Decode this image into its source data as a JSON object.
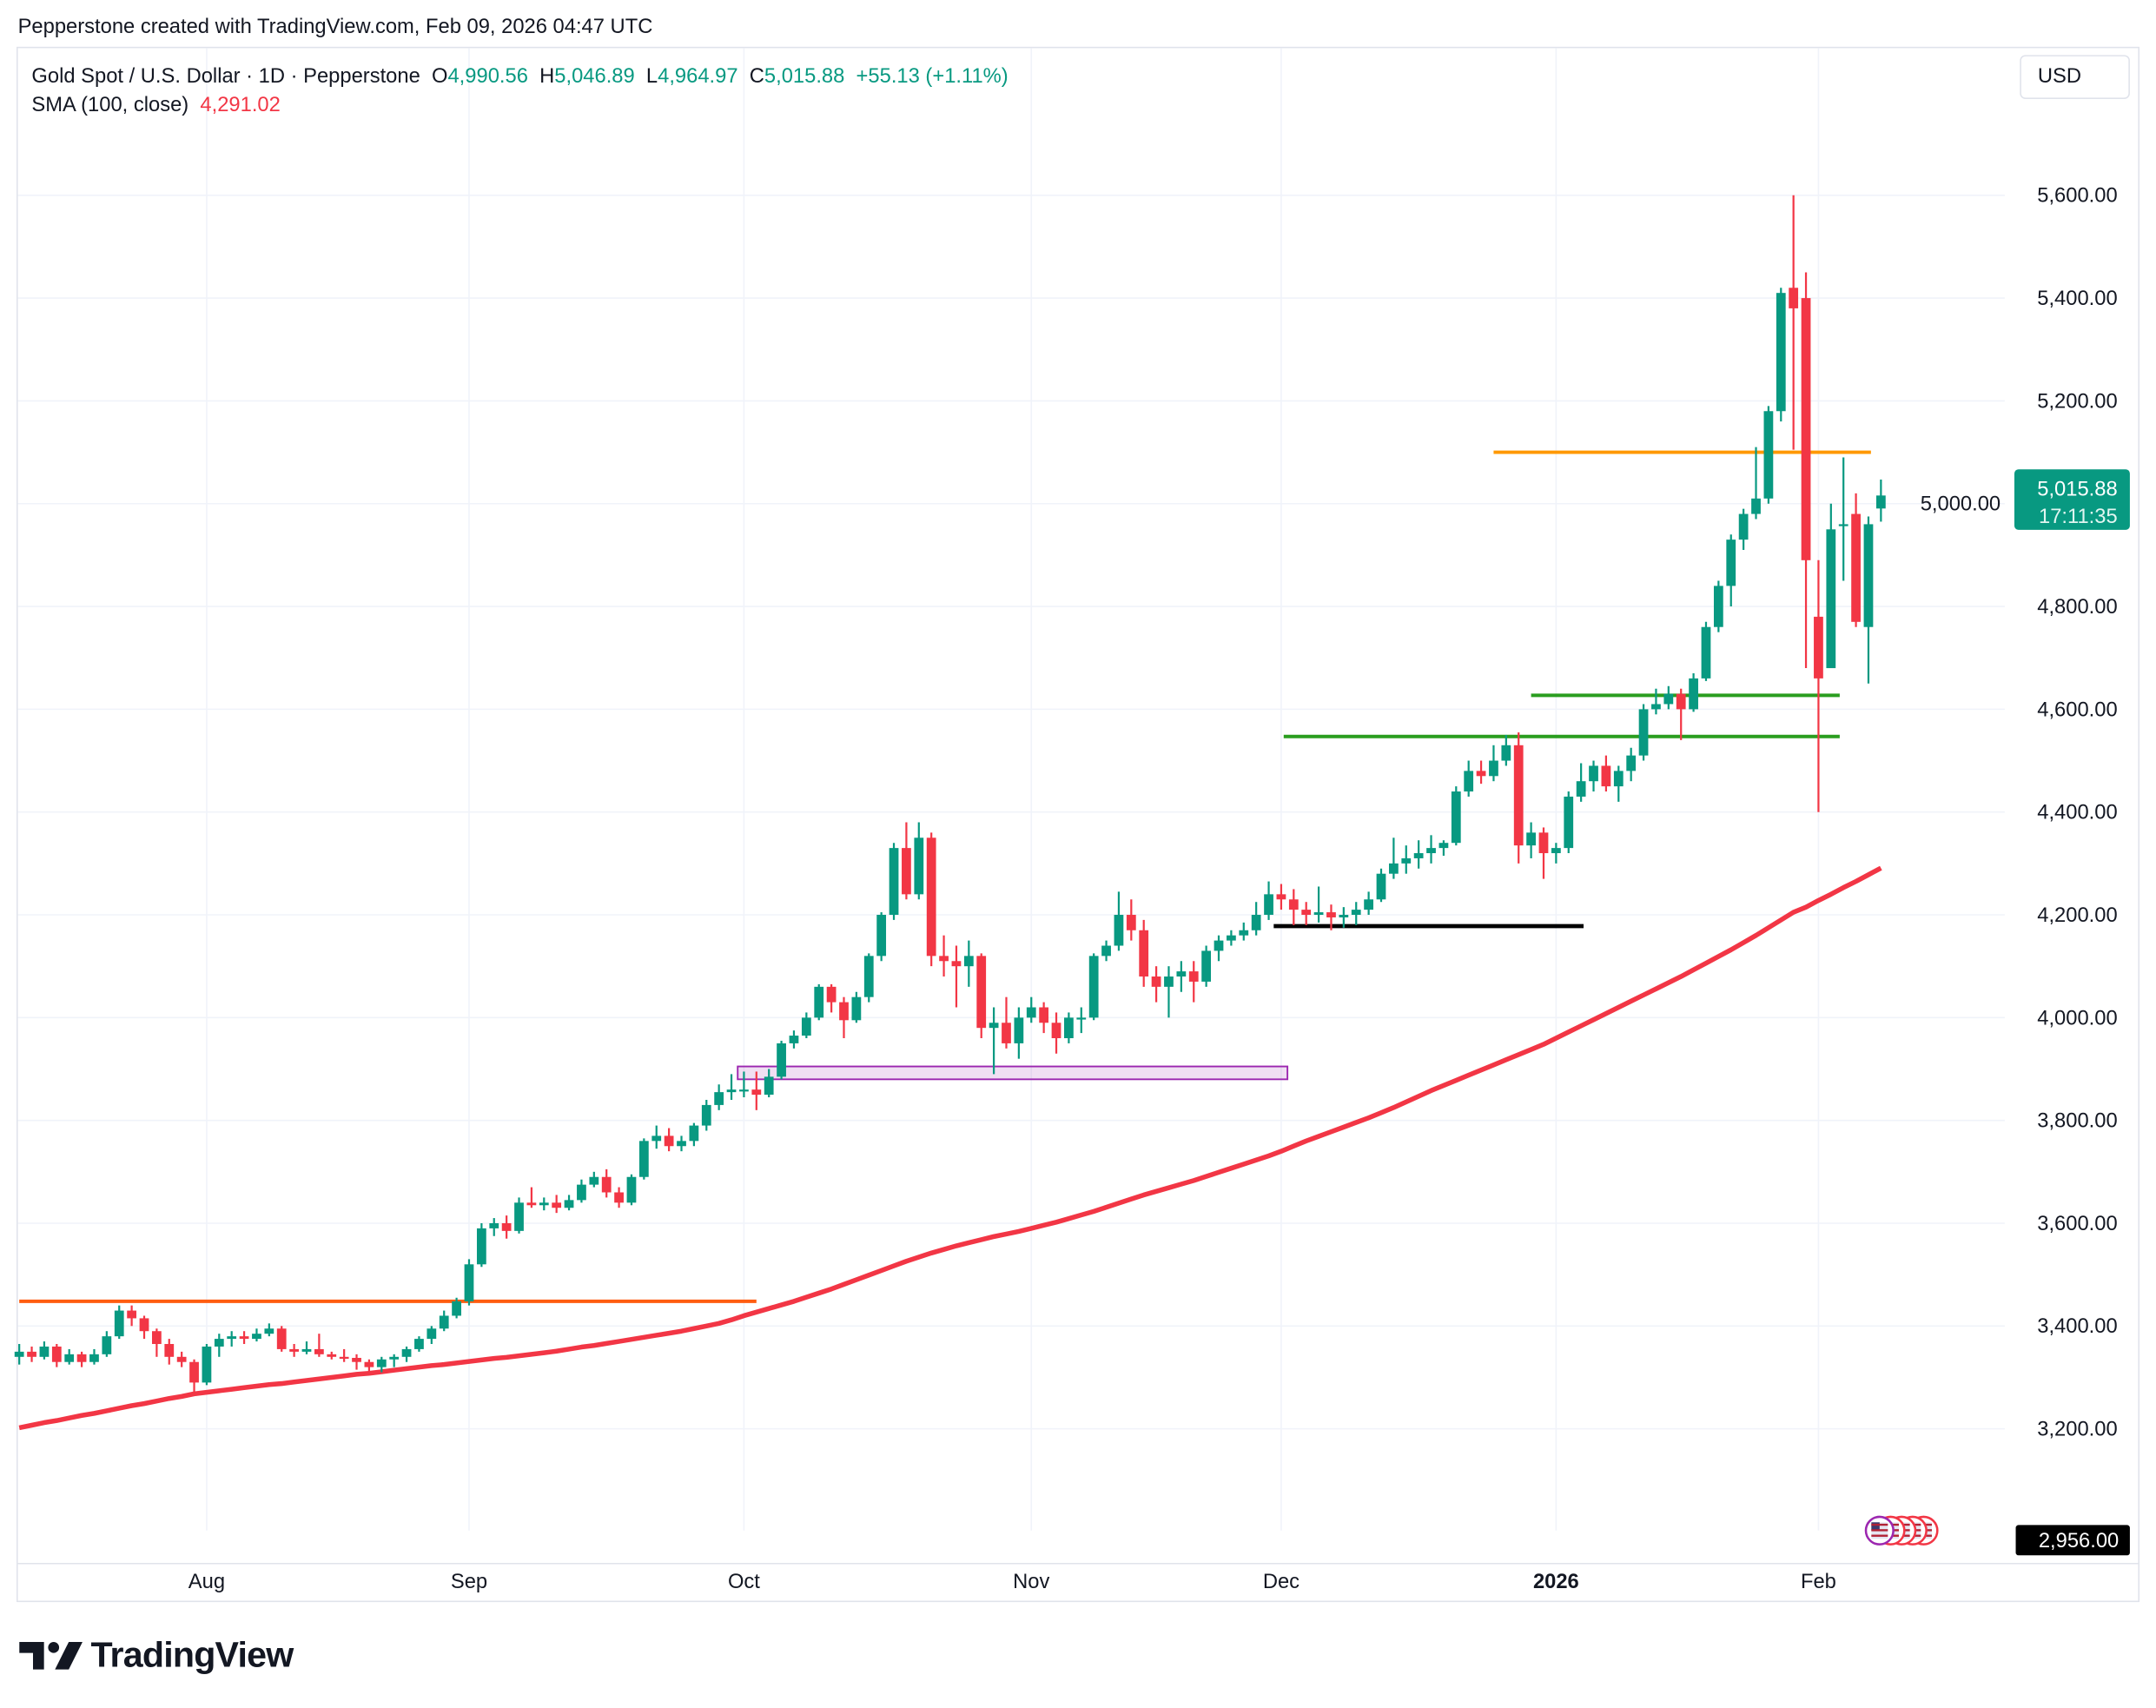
{
  "caption": "Pepperstone created with TradingView.com, Feb 09, 2026 04:47 UTC",
  "legend": {
    "symbol": "Gold Spot / U.S. Dollar · 1D · Pepperstone",
    "o_label": "O",
    "o": "4,990.56",
    "h_label": "H",
    "h": "5,046.89",
    "l_label": "L",
    "l": "4,964.97",
    "c_label": "C",
    "c": "5,015.88",
    "change": "+55.13 (+1.11%)",
    "sma_label": "SMA (100, close)",
    "sma_value": "4,291.02"
  },
  "currency_button": "USD",
  "price_label": {
    "price": "5,015.88",
    "countdown": "17:11:35"
  },
  "crosshair_label": "2,956.00",
  "logo_text": "TradingView",
  "colors": {
    "up": "#089981",
    "down": "#f23645",
    "sma": "#f23645",
    "grid": "#f0f3fa",
    "orange_line": "#ff9800",
    "orange_red_line": "#ff5d10",
    "green_line": "#2a9d1f",
    "black_line": "#000000",
    "zone": "#9c27b0"
  },
  "chart_data": {
    "type": "candlestick",
    "title": "Gold Spot / U.S. Dollar · 1D · Pepperstone",
    "ylim": [
      2956,
      5700
    ],
    "y_ticks": [
      "3,200.00",
      "3,400.00",
      "3,600.00",
      "3,800.00",
      "4,000.00",
      "4,200.00",
      "4,400.00",
      "4,600.00",
      "4,800.00",
      "5,000.00",
      "5,200.00",
      "5,400.00",
      "5,600.00"
    ],
    "x_ticks": [
      {
        "label": "Aug",
        "bold": false
      },
      {
        "label": "Sep",
        "bold": false
      },
      {
        "label": "Oct",
        "bold": false
      },
      {
        "label": "Nov",
        "bold": false
      },
      {
        "label": "Dec",
        "bold": false
      },
      {
        "label": "2026",
        "bold": true
      },
      {
        "label": "Feb",
        "bold": false
      }
    ],
    "grid": true,
    "ohlc_format": "open, high, low, close",
    "candles": [
      [
        3340,
        3365,
        3325,
        3350
      ],
      [
        3350,
        3360,
        3330,
        3340
      ],
      [
        3340,
        3370,
        3335,
        3360
      ],
      [
        3360,
        3365,
        3320,
        3330
      ],
      [
        3330,
        3355,
        3325,
        3345
      ],
      [
        3345,
        3350,
        3320,
        3330
      ],
      [
        3330,
        3355,
        3325,
        3345
      ],
      [
        3345,
        3390,
        3340,
        3380
      ],
      [
        3380,
        3440,
        3375,
        3430
      ],
      [
        3430,
        3440,
        3400,
        3415
      ],
      [
        3415,
        3420,
        3375,
        3390
      ],
      [
        3390,
        3395,
        3340,
        3365
      ],
      [
        3365,
        3375,
        3325,
        3340
      ],
      [
        3340,
        3350,
        3320,
        3330
      ],
      [
        3330,
        3335,
        3268,
        3290
      ],
      [
        3290,
        3365,
        3285,
        3360
      ],
      [
        3360,
        3385,
        3340,
        3375
      ],
      [
        3375,
        3390,
        3360,
        3380
      ],
      [
        3380,
        3390,
        3365,
        3375
      ],
      [
        3375,
        3395,
        3370,
        3385
      ],
      [
        3385,
        3405,
        3380,
        3395
      ],
      [
        3395,
        3400,
        3350,
        3355
      ],
      [
        3355,
        3365,
        3340,
        3350
      ],
      [
        3350,
        3370,
        3345,
        3355
      ],
      [
        3355,
        3385,
        3340,
        3345
      ],
      [
        3345,
        3350,
        3335,
        3340
      ],
      [
        3340,
        3355,
        3330,
        3338
      ],
      [
        3338,
        3345,
        3315,
        3330
      ],
      [
        3330,
        3335,
        3310,
        3320
      ],
      [
        3320,
        3340,
        3310,
        3335
      ],
      [
        3335,
        3345,
        3320,
        3340
      ],
      [
        3340,
        3360,
        3330,
        3355
      ],
      [
        3355,
        3380,
        3350,
        3375
      ],
      [
        3375,
        3400,
        3365,
        3395
      ],
      [
        3395,
        3430,
        3390,
        3420
      ],
      [
        3420,
        3455,
        3415,
        3448
      ],
      [
        3448,
        3530,
        3440,
        3520
      ],
      [
        3520,
        3600,
        3515,
        3590
      ],
      [
        3590,
        3610,
        3575,
        3600
      ],
      [
        3600,
        3615,
        3570,
        3585
      ],
      [
        3585,
        3650,
        3580,
        3640
      ],
      [
        3640,
        3670,
        3630,
        3635
      ],
      [
        3635,
        3650,
        3625,
        3640
      ],
      [
        3640,
        3655,
        3620,
        3630
      ],
      [
        3630,
        3655,
        3625,
        3645
      ],
      [
        3645,
        3685,
        3640,
        3675
      ],
      [
        3675,
        3700,
        3670,
        3690
      ],
      [
        3690,
        3705,
        3650,
        3660
      ],
      [
        3660,
        3670,
        3630,
        3640
      ],
      [
        3640,
        3695,
        3635,
        3690
      ],
      [
        3690,
        3765,
        3685,
        3760
      ],
      [
        3760,
        3790,
        3745,
        3770
      ],
      [
        3770,
        3785,
        3740,
        3750
      ],
      [
        3750,
        3770,
        3740,
        3760
      ],
      [
        3760,
        3795,
        3750,
        3790
      ],
      [
        3790,
        3840,
        3780,
        3830
      ],
      [
        3830,
        3870,
        3820,
        3855
      ],
      [
        3855,
        3890,
        3840,
        3860
      ],
      [
        3860,
        3895,
        3845,
        3860
      ],
      [
        3860,
        3895,
        3820,
        3850
      ],
      [
        3850,
        3900,
        3845,
        3885
      ],
      [
        3885,
        3955,
        3880,
        3950
      ],
      [
        3950,
        3975,
        3940,
        3965
      ],
      [
        3965,
        4010,
        3960,
        4000
      ],
      [
        4000,
        4065,
        3995,
        4060
      ],
      [
        4060,
        4065,
        4010,
        4030
      ],
      [
        4030,
        4040,
        3960,
        3995
      ],
      [
        3995,
        4050,
        3990,
        4040
      ],
      [
        4040,
        4125,
        4030,
        4120
      ],
      [
        4120,
        4205,
        4110,
        4200
      ],
      [
        4200,
        4340,
        4190,
        4330
      ],
      [
        4330,
        4380,
        4230,
        4240
      ],
      [
        4240,
        4380,
        4230,
        4350
      ],
      [
        4350,
        4360,
        4100,
        4120
      ],
      [
        4120,
        4160,
        4080,
        4110
      ],
      [
        4110,
        4140,
        4020,
        4100
      ],
      [
        4100,
        4150,
        4060,
        4120
      ],
      [
        4120,
        4125,
        3960,
        3980
      ],
      [
        3980,
        4020,
        3890,
        3990
      ],
      [
        3990,
        4040,
        3940,
        3950
      ],
      [
        3950,
        4020,
        3920,
        4000
      ],
      [
        4000,
        4040,
        3990,
        4020
      ],
      [
        4020,
        4030,
        3970,
        3990
      ],
      [
        3990,
        4010,
        3930,
        3960
      ],
      [
        3960,
        4010,
        3950,
        4000
      ],
      [
        4000,
        4020,
        3970,
        4000
      ],
      [
        4000,
        4125,
        3995,
        4120
      ],
      [
        4120,
        4150,
        4110,
        4140
      ],
      [
        4140,
        4245,
        4130,
        4200
      ],
      [
        4200,
        4230,
        4150,
        4170
      ],
      [
        4170,
        4190,
        4060,
        4080
      ],
      [
        4080,
        4100,
        4030,
        4060
      ],
      [
        4060,
        4100,
        4000,
        4080
      ],
      [
        4080,
        4110,
        4050,
        4090
      ],
      [
        4090,
        4110,
        4030,
        4070
      ],
      [
        4070,
        4140,
        4060,
        4130
      ],
      [
        4130,
        4160,
        4110,
        4150
      ],
      [
        4150,
        4170,
        4140,
        4160
      ],
      [
        4160,
        4185,
        4150,
        4170
      ],
      [
        4170,
        4225,
        4160,
        4200
      ],
      [
        4200,
        4265,
        4190,
        4240
      ],
      [
        4240,
        4260,
        4210,
        4230
      ],
      [
        4230,
        4250,
        4180,
        4210
      ],
      [
        4210,
        4225,
        4180,
        4200
      ],
      [
        4200,
        4255,
        4185,
        4205
      ],
      [
        4205,
        4220,
        4170,
        4195
      ],
      [
        4195,
        4215,
        4175,
        4200
      ],
      [
        4200,
        4225,
        4180,
        4210
      ],
      [
        4210,
        4245,
        4200,
        4230
      ],
      [
        4230,
        4290,
        4225,
        4280
      ],
      [
        4280,
        4350,
        4270,
        4300
      ],
      [
        4300,
        4335,
        4280,
        4310
      ],
      [
        4310,
        4345,
        4290,
        4320
      ],
      [
        4320,
        4355,
        4300,
        4330
      ],
      [
        4330,
        4345,
        4315,
        4340
      ],
      [
        4340,
        4450,
        4335,
        4440
      ],
      [
        4440,
        4500,
        4430,
        4480
      ],
      [
        4480,
        4500,
        4455,
        4470
      ],
      [
        4470,
        4530,
        4460,
        4500
      ],
      [
        4500,
        4550,
        4490,
        4530
      ],
      [
        4530,
        4555,
        4300,
        4335
      ],
      [
        4335,
        4380,
        4310,
        4360
      ],
      [
        4360,
        4370,
        4270,
        4320
      ],
      [
        4320,
        4340,
        4300,
        4330
      ],
      [
        4330,
        4440,
        4320,
        4430
      ],
      [
        4430,
        4495,
        4420,
        4460
      ],
      [
        4460,
        4500,
        4440,
        4490
      ],
      [
        4490,
        4510,
        4440,
        4450
      ],
      [
        4450,
        4490,
        4420,
        4480
      ],
      [
        4480,
        4525,
        4460,
        4510
      ],
      [
        4510,
        4610,
        4500,
        4600
      ],
      [
        4600,
        4640,
        4590,
        4610
      ],
      [
        4610,
        4645,
        4600,
        4630
      ],
      [
        4630,
        4640,
        4540,
        4600
      ],
      [
        4600,
        4670,
        4595,
        4660
      ],
      [
        4660,
        4770,
        4655,
        4760
      ],
      [
        4760,
        4850,
        4750,
        4840
      ],
      [
        4840,
        4940,
        4800,
        4930
      ],
      [
        4930,
        4990,
        4910,
        4980
      ],
      [
        4980,
        5110,
        4970,
        5010
      ],
      [
        5010,
        5190,
        5000,
        5180
      ],
      [
        5180,
        5420,
        5160,
        5410
      ],
      [
        5420,
        5600,
        5105,
        5380
      ],
      [
        5400,
        5450,
        4680,
        4890
      ],
      [
        4780,
        4890,
        4400,
        4660
      ],
      [
        4680,
        5000,
        4680,
        4950
      ],
      [
        4960,
        5090,
        4850,
        4960
      ],
      [
        4980,
        5020,
        4760,
        4770
      ],
      [
        4760,
        4975,
        4650,
        4960
      ],
      [
        4990.56,
        5046.89,
        4964.97,
        5015.88
      ]
    ],
    "series": [
      {
        "name": "SMA (100, close)",
        "values": [
          3202,
          3207,
          3212,
          3216,
          3221,
          3226,
          3230,
          3235,
          3240,
          3245,
          3249,
          3254,
          3259,
          3263,
          3268,
          3271,
          3274,
          3277,
          3280,
          3283,
          3286,
          3288,
          3291,
          3294,
          3297,
          3300,
          3303,
          3306,
          3308,
          3311,
          3314,
          3317,
          3320,
          3323,
          3325,
          3328,
          3331,
          3334,
          3337,
          3339,
          3342,
          3345,
          3348,
          3351,
          3355,
          3359,
          3362,
          3366,
          3370,
          3374,
          3378,
          3382,
          3386,
          3390,
          3395,
          3400,
          3405,
          3412,
          3420,
          3427,
          3434,
          3441,
          3448,
          3456,
          3464,
          3472,
          3481,
          3490,
          3499,
          3508,
          3517,
          3526,
          3534,
          3542,
          3549,
          3556,
          3562,
          3568,
          3574,
          3579,
          3584,
          3590,
          3596,
          3602,
          3609,
          3616,
          3623,
          3631,
          3639,
          3647,
          3655,
          3662,
          3669,
          3676,
          3683,
          3691,
          3699,
          3707,
          3715,
          3723,
          3731,
          3740,
          3750,
          3760,
          3769,
          3778,
          3787,
          3796,
          3805,
          3815,
          3825,
          3836,
          3847,
          3858,
          3868,
          3878,
          3888,
          3898,
          3908,
          3918,
          3928,
          3938,
          3948,
          3960,
          3972,
          3984,
          3996,
          4008,
          4020,
          4032,
          4044,
          4056,
          4068,
          4080,
          4093,
          4106,
          4119,
          4132,
          4146,
          4160,
          4175,
          4190,
          4205,
          4215,
          4228,
          4240,
          4253,
          4265,
          4278,
          4291.02
        ]
      }
    ],
    "drawings": {
      "resistance_orange_low": 3448,
      "resistance_orange_high": 5100,
      "support_green_upper": 4627,
      "support_green_lower": 4547,
      "support_black": 4178,
      "zone_purple": [
        3880,
        3905
      ]
    }
  }
}
